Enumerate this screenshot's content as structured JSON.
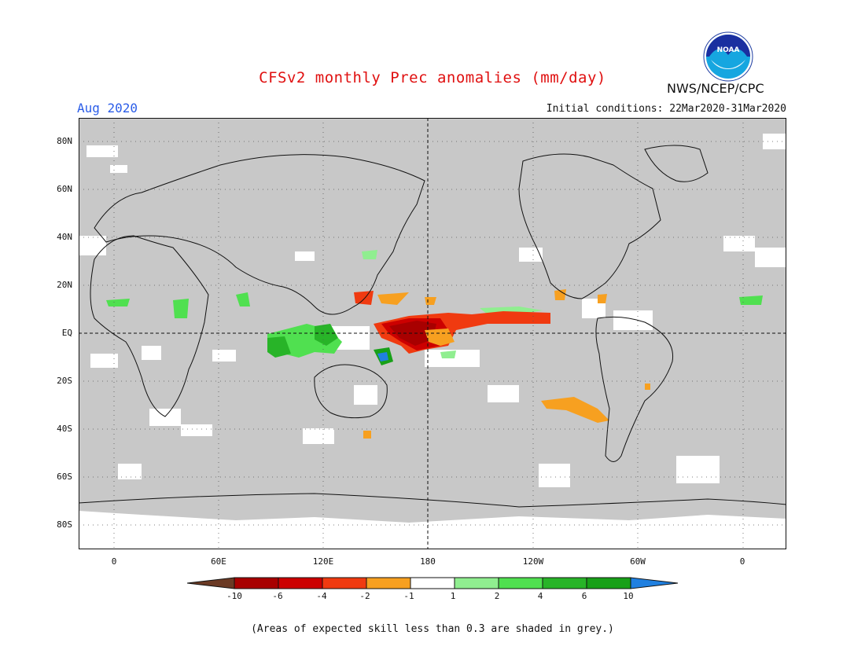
{
  "header": {
    "title": "CFSv2 monthly Prec anomalies (mm/day)",
    "month": "Aug 2020",
    "initial_conditions": "Initial conditions: 22Mar2020-31Mar2020",
    "agency": "NWS/NCEP/CPC",
    "logo_text": "NOAA"
  },
  "axes": {
    "y_ticks": [
      "80N",
      "60N",
      "40N",
      "20N",
      "EQ",
      "20S",
      "40S",
      "60S",
      "80S"
    ],
    "x_ticks": [
      "0",
      "60E",
      "120E",
      "180",
      "120W",
      "60W",
      "0"
    ]
  },
  "colorbar": {
    "labels": [
      "-10",
      "-6",
      "-4",
      "-2",
      "-1",
      "1",
      "2",
      "4",
      "6",
      "10"
    ],
    "colors": {
      "below_min": "#6b3a24",
      "c1": "#a80000",
      "c2": "#cc0000",
      "c3": "#f03a10",
      "c4": "#f7a020",
      "c5": "#ffffff",
      "c6": "#90ee90",
      "c7": "#50e050",
      "c8": "#28b428",
      "c9": "#18a018",
      "above_max": "#2080e0"
    }
  },
  "colors": {
    "mask_grey": "#c8c8c8",
    "title_red": "#e01010",
    "month_blue": "#2b5de8"
  },
  "footnote": "(Areas of expected skill less than 0.3 are shaded in grey.)"
}
